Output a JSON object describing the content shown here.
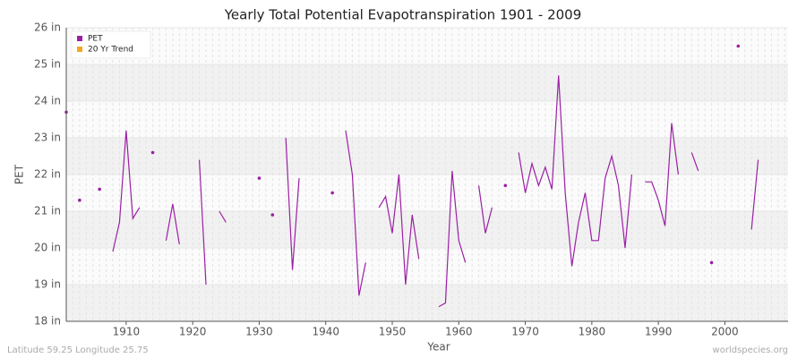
{
  "chart_data": {
    "type": "line",
    "title": "Yearly Total Potential Evapotranspiration 1901 - 2009",
    "x_label": "Year",
    "y_label": "PET",
    "x": [
      1901,
      1902,
      1903,
      1904,
      1905,
      1906,
      1907,
      1908,
      1909,
      1910,
      1911,
      1912,
      1913,
      1914,
      1915,
      1916,
      1917,
      1918,
      1919,
      1920,
      1921,
      1922,
      1923,
      1924,
      1925,
      1926,
      1927,
      1928,
      1929,
      1930,
      1931,
      1932,
      1933,
      1934,
      1935,
      1936,
      1937,
      1938,
      1939,
      1940,
      1941,
      1942,
      1943,
      1944,
      1945,
      1946,
      1947,
      1948,
      1949,
      1950,
      1951,
      1952,
      1953,
      1954,
      1955,
      1956,
      1957,
      1958,
      1959,
      1960,
      1961,
      1962,
      1963,
      1964,
      1965,
      1966,
      1967,
      1968,
      1969,
      1970,
      1971,
      1972,
      1973,
      1974,
      1975,
      1976,
      1977,
      1978,
      1979,
      1980,
      1981,
      1982,
      1983,
      1984,
      1985,
      1986,
      1987,
      1988,
      1989,
      1990,
      1991,
      1992,
      1993,
      1994,
      1995,
      1996,
      1997,
      1998,
      1999,
      2000,
      2001,
      2002,
      2003,
      2004,
      2005,
      2006,
      2007,
      2008,
      2009
    ],
    "series": [
      {
        "name": "PET",
        "color": "#9b1fa5",
        "values": [
          23.7,
          null,
          21.3,
          null,
          null,
          21.6,
          null,
          19.9,
          20.7,
          23.2,
          20.8,
          21.1,
          null,
          22.6,
          null,
          20.2,
          21.2,
          20.1,
          null,
          null,
          22.4,
          19.0,
          null,
          21.0,
          20.7,
          null,
          null,
          null,
          null,
          21.9,
          null,
          20.9,
          null,
          23.0,
          19.4,
          21.9,
          null,
          null,
          null,
          null,
          21.5,
          null,
          23.2,
          22.0,
          18.7,
          19.6,
          null,
          21.1,
          21.4,
          20.4,
          22.0,
          19.0,
          20.9,
          19.7,
          null,
          null,
          18.4,
          18.5,
          22.1,
          20.2,
          19.6,
          null,
          21.7,
          20.4,
          21.1,
          null,
          21.7,
          null,
          22.6,
          21.5,
          22.3,
          21.7,
          22.2,
          21.6,
          24.7,
          21.5,
          19.5,
          20.7,
          21.5,
          20.2,
          20.2,
          21.9,
          22.5,
          21.7,
          20.0,
          22.0,
          null,
          21.8,
          21.8,
          21.3,
          20.6,
          23.4,
          22.0,
          null,
          22.6,
          22.1,
          null,
          19.6,
          null,
          null,
          null,
          25.5,
          null,
          20.5,
          22.4,
          null,
          null,
          null,
          null
        ]
      },
      {
        "name": "20 Yr Trend",
        "color": "#f5a623",
        "values": [
          null,
          null,
          null,
          null,
          null,
          null,
          null,
          null,
          null,
          null,
          null,
          null,
          null,
          null,
          null,
          null,
          null,
          null,
          null,
          null,
          null,
          null,
          null,
          null,
          null,
          null,
          null,
          null,
          null,
          null,
          null,
          null,
          null,
          null,
          null,
          null,
          null,
          null,
          null,
          null,
          null,
          null,
          null,
          null,
          null,
          null,
          null,
          null,
          null,
          null,
          null,
          null,
          null,
          null,
          null,
          null,
          null,
          null,
          null,
          null,
          null,
          null,
          null,
          null,
          null,
          null,
          null,
          null,
          null,
          null,
          null,
          null,
          null,
          null,
          null,
          null,
          null,
          null,
          null,
          null,
          null,
          null,
          null,
          null,
          null,
          null,
          null,
          null,
          null,
          null,
          null,
          null,
          null,
          null,
          null,
          null,
          null,
          null,
          null,
          null,
          null,
          null,
          null,
          null,
          null,
          null,
          null,
          null,
          null
        ]
      }
    ],
    "xlim": [
      1901,
      2009.5
    ],
    "xticks": [
      1910,
      1920,
      1930,
      1940,
      1950,
      1960,
      1970,
      1980,
      1990,
      2000
    ],
    "ylim": [
      18,
      26
    ],
    "yticks": [
      {
        "value": 18,
        "label": "18 in"
      },
      {
        "value": 19,
        "label": "19 in"
      },
      {
        "value": 20,
        "label": "20 in"
      },
      {
        "value": 21,
        "label": "21 in"
      },
      {
        "value": 22,
        "label": "22 in"
      },
      {
        "value": 23,
        "label": "23 in"
      },
      {
        "value": 24,
        "label": "24 in"
      },
      {
        "value": 25,
        "label": "25 in"
      },
      {
        "value": 26,
        "label": "26 in"
      }
    ],
    "grid": true,
    "legend": "upper left",
    "footer_left": "Latitude 59.25 Longitude 25.75",
    "footer_right": "worldspecies.org"
  }
}
